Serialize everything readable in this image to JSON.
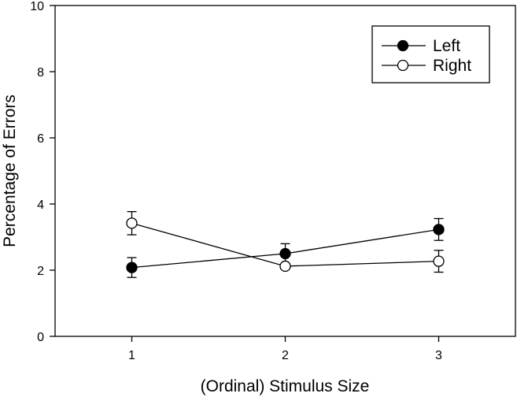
{
  "chart_data": {
    "type": "line",
    "title": "",
    "xlabel": "(Ordinal) Stimulus Size",
    "ylabel": "Percentage of Errors",
    "x": [
      1,
      2,
      3
    ],
    "xlim": [
      0.5,
      3.5
    ],
    "ylim": [
      0,
      10
    ],
    "xticks": [
      "1",
      "2",
      "3"
    ],
    "yticks": [
      "0",
      "2",
      "4",
      "6",
      "8",
      "10"
    ],
    "grid": false,
    "legend_position": "top-right",
    "series": [
      {
        "name": "Left",
        "marker": "filled-circle",
        "values": [
          2.08,
          2.5,
          3.23
        ],
        "errors": [
          0.3,
          0.3,
          0.33
        ]
      },
      {
        "name": "Right",
        "marker": "open-circle",
        "values": [
          3.42,
          2.12,
          2.27
        ],
        "errors": [
          0.35,
          0.02,
          0.33
        ]
      }
    ]
  }
}
